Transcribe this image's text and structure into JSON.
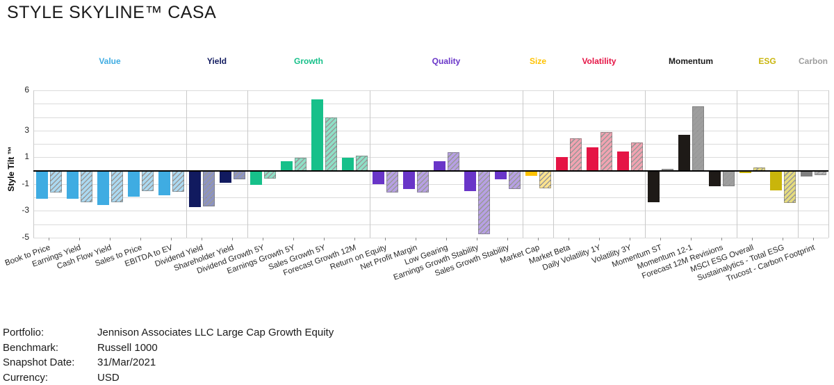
{
  "title": "STYLE SKYLINE™ CASA",
  "chart_data": {
    "type": "bar",
    "title": "STYLE SKYLINE™ CASA",
    "ylabel": "Style Tilt ™",
    "ylim": [
      -5,
      6
    ],
    "grid": true,
    "labeled_yticks": [
      6,
      3,
      1,
      -1,
      -3,
      -5
    ],
    "legend_position": "none",
    "bar_styles": [
      "solid",
      "hatched"
    ],
    "groups": [
      {
        "name": "Value",
        "color": "#3FACE2",
        "hatch_base": "#ABD9F1",
        "factors": [
          {
            "label": "Book to Price",
            "solid": -2.1,
            "hatched": -1.65
          },
          {
            "label": "Earnings Yield",
            "solid": -2.1,
            "hatched": -2.35
          },
          {
            "label": "Cash Flow Yield",
            "solid": -2.55,
            "hatched": -2.35
          },
          {
            "label": "Sales to Price",
            "solid": -1.95,
            "hatched": -1.5
          },
          {
            "label": "EBITDA to EV",
            "solid": -1.85,
            "hatched": -1.6
          }
        ]
      },
      {
        "name": "Yield",
        "color": "#111A5F",
        "hatch_base": "#8C93C3",
        "factors": [
          {
            "label": "Dividend Yield",
            "solid": -2.7,
            "hatched": -2.65
          },
          {
            "label": "Shareholder Yield",
            "solid": -0.9,
            "hatched": -0.65
          }
        ]
      },
      {
        "name": "Growth",
        "color": "#17C08A",
        "hatch_base": "#8EE0C6",
        "factors": [
          {
            "label": "Dividend Growth 5Y",
            "solid": -1.05,
            "hatched": -0.6
          },
          {
            "label": "Earnings Growth 5Y",
            "solid": 0.7,
            "hatched": 0.95
          },
          {
            "label": "Sales Growth 5Y",
            "solid": 5.3,
            "hatched": 4.0
          },
          {
            "label": "Forecast Growth 12M",
            "solid": 0.95,
            "hatched": 1.1
          }
        ]
      },
      {
        "name": "Quality",
        "color": "#6935C8",
        "hatch_base": "#B7A0E4",
        "factors": [
          {
            "label": "Return on Equity",
            "solid": -1.0,
            "hatched": -1.65
          },
          {
            "label": "Net Profit Margin",
            "solid": -1.35,
            "hatched": -1.65
          },
          {
            "label": "Low Gearing",
            "solid": 0.7,
            "hatched": 1.4
          },
          {
            "label": "Earnings Growth Stability",
            "solid": -1.5,
            "hatched": -4.75
          },
          {
            "label": "Sales Growth Stability",
            "solid": -0.65,
            "hatched": -1.35
          }
        ]
      },
      {
        "name": "Size",
        "color": "#FFC200",
        "hatch_base": "#FFE38E",
        "factors": [
          {
            "label": "Market Cap",
            "solid": -0.4,
            "hatched": -1.3
          }
        ]
      },
      {
        "name": "Volatility",
        "color": "#E51445",
        "hatch_base": "#F1A3B1",
        "factors": [
          {
            "label": "Market Beta",
            "solid": 1.0,
            "hatched": 2.4
          },
          {
            "label": "Daily Volatility 1Y",
            "solid": 1.75,
            "hatched": 2.9
          },
          {
            "label": "Volatility 3Y",
            "solid": 1.45,
            "hatched": 2.1
          }
        ]
      },
      {
        "name": "Momentum",
        "color": "#1E1A17",
        "hatch_base": "#9E9E9E",
        "factors": [
          {
            "label": "Momentum ST",
            "solid": -2.35,
            "hatched": 0.15
          },
          {
            "label": "Momentum 12-1",
            "solid": 2.7,
            "hatched": 4.8
          },
          {
            "label": "Forecast 12M Revisions",
            "solid": -1.15,
            "hatched": -1.15
          }
        ]
      },
      {
        "name": "ESG",
        "color": "#C9B50B",
        "hatch_base": "#E6DC7E",
        "factors": [
          {
            "label": "MSCI ESG Overall",
            "solid": -0.15,
            "hatched": 0.25
          },
          {
            "label": "Sustainalytics - Total ESG",
            "solid": -1.45,
            "hatched": -2.4
          }
        ]
      },
      {
        "name": "Carbon",
        "color": "#7F7F7F",
        "hatch_base": "#B5B5B5",
        "factors": [
          {
            "label": "Trucost - Carbon Footprint",
            "solid": -0.45,
            "hatched": -0.35
          }
        ]
      }
    ]
  },
  "info": {
    "rows": [
      {
        "label": "Portfolio:",
        "value": "Jennison Associates LLC Large Cap Growth Equity"
      },
      {
        "label": "Benchmark:",
        "value": "Russell 1000"
      },
      {
        "label": "Snapshot Date:",
        "value": "31/Mar/2021"
      },
      {
        "label": "Currency:",
        "value": "USD"
      }
    ]
  }
}
